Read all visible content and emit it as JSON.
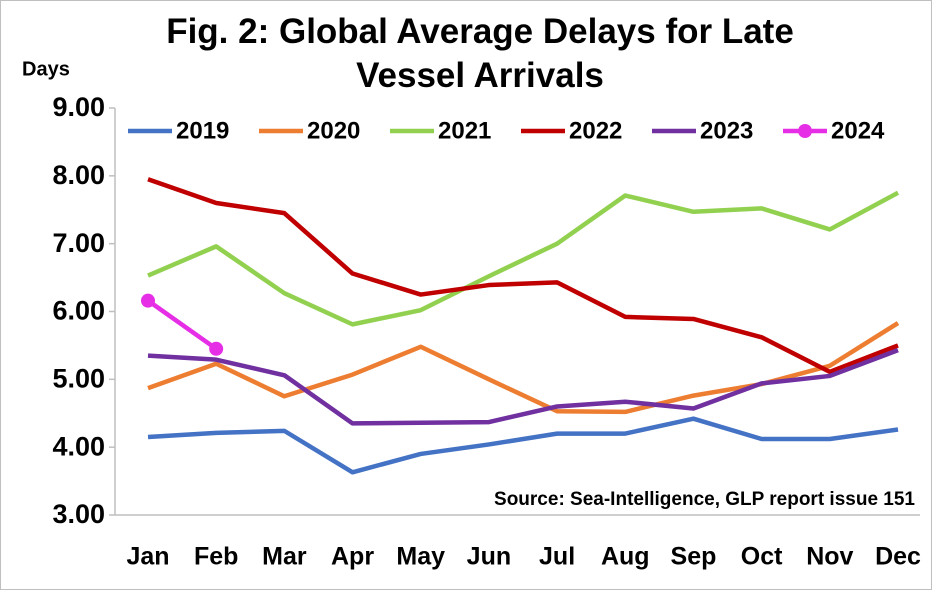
{
  "chart_data": {
    "type": "line",
    "title": "Fig. 2: Global Average Delays for Late Vessel Arrivals",
    "y_label": "Days",
    "annotation": "Source: Sea-Intelligence, GLP report issue 151",
    "categories": [
      "Jan",
      "Feb",
      "Mar",
      "Apr",
      "May",
      "Jun",
      "Jul",
      "Aug",
      "Sep",
      "Oct",
      "Nov",
      "Dec"
    ],
    "series": [
      {
        "name": "2019",
        "color": "#4472c4",
        "values": [
          4.15,
          4.21,
          4.24,
          3.63,
          3.9,
          4.04,
          4.2,
          4.2,
          4.42,
          4.12,
          4.12,
          4.26
        ]
      },
      {
        "name": "2020",
        "color": "#ed7d31",
        "values": [
          4.87,
          5.23,
          4.75,
          5.07,
          5.48,
          5.0,
          4.53,
          4.52,
          4.76,
          4.93,
          5.2,
          5.83
        ]
      },
      {
        "name": "2021",
        "color": "#92d050",
        "values": [
          6.53,
          6.96,
          6.27,
          5.81,
          6.02,
          6.52,
          7.0,
          7.71,
          7.47,
          7.52,
          7.21,
          7.75
        ]
      },
      {
        "name": "2022",
        "color": "#c00000",
        "values": [
          7.95,
          7.6,
          7.45,
          6.56,
          6.25,
          6.39,
          6.43,
          5.92,
          5.89,
          5.62,
          5.11,
          5.5
        ]
      },
      {
        "name": "2023",
        "color": "#7030a0",
        "values": [
          5.35,
          5.29,
          5.06,
          4.35,
          4.36,
          4.37,
          4.6,
          4.67,
          4.57,
          4.94,
          5.05,
          5.43
        ]
      },
      {
        "name": "2024",
        "color": "#e52ee5",
        "markers": true,
        "values": [
          6.16,
          5.45,
          null,
          null,
          null,
          null,
          null,
          null,
          null,
          null,
          null,
          null
        ]
      }
    ],
    "ylim": [
      3,
      9
    ],
    "yticks": [
      {
        "value": 3,
        "label": "3.00"
      },
      {
        "value": 4,
        "label": "4.00"
      },
      {
        "value": 5,
        "label": "5.00"
      },
      {
        "value": 6,
        "label": "6.00"
      },
      {
        "value": 7,
        "label": "7.00"
      },
      {
        "value": 8,
        "label": "8.00"
      },
      {
        "value": 9,
        "label": "9.00"
      }
    ],
    "grid": false,
    "legend": "top"
  }
}
